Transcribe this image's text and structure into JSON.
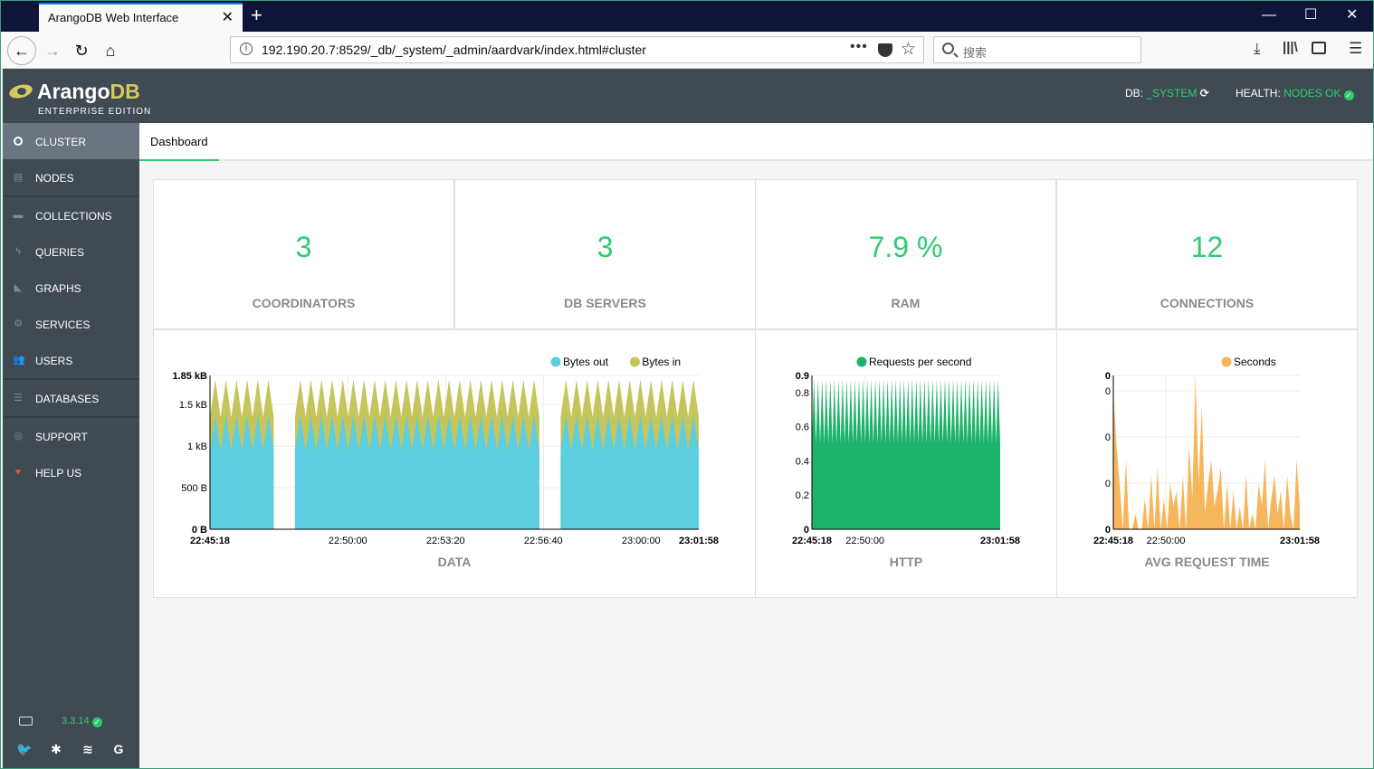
{
  "browser": {
    "tab_title": "ArangoDB Web Interface",
    "url": "192.190.20.7:8529/_db/_system/_admin/aardvark/index.html#cluster",
    "search_placeholder": "搜索"
  },
  "header": {
    "logo_main": "Arango",
    "logo_db": "DB",
    "logo_sub": "ENTERPRISE EDITION",
    "db_label": "DB:",
    "db_value": "_SYSTEM",
    "health_label": "HEALTH:",
    "health_value": "NODES OK"
  },
  "sidebar": {
    "items": [
      {
        "label": "CLUSTER",
        "icon": "circle-icon"
      },
      {
        "label": "NODES",
        "icon": "server-icon"
      },
      {
        "label": "COLLECTIONS",
        "icon": "folder-icon"
      },
      {
        "label": "QUERIES",
        "icon": "bolt-icon"
      },
      {
        "label": "GRAPHS",
        "icon": "area-chart-icon"
      },
      {
        "label": "SERVICES",
        "icon": "cogs-icon"
      },
      {
        "label": "USERS",
        "icon": "users-icon"
      },
      {
        "label": "DATABASES",
        "icon": "database-icon"
      },
      {
        "label": "SUPPORT",
        "icon": "lifebuoy-icon"
      },
      {
        "label": "HELP US",
        "icon": "heart-icon"
      }
    ],
    "version": "3.3.14"
  },
  "subbar": {
    "tab": "Dashboard"
  },
  "stats": [
    {
      "value": "3",
      "caption": "COORDINATORS"
    },
    {
      "value": "3",
      "caption": "DB SERVERS"
    },
    {
      "value": "7.9 %",
      "caption": "RAM"
    },
    {
      "value": "12",
      "caption": "CONNECTIONS"
    }
  ],
  "colors": {
    "bytes_out": "#5dcde0",
    "bytes_in": "#c5c55c",
    "requests": "#1db36a",
    "seconds": "#f6b65c",
    "accent": "#2ecc71"
  },
  "chart_data": [
    {
      "type": "area",
      "caption": "DATA",
      "series": [
        {
          "name": "Bytes out"
        },
        {
          "name": "Bytes in"
        }
      ],
      "y_ticks": [
        "0 B",
        "500 B",
        "1 kB",
        "1.5 kB",
        "1.85 kB"
      ],
      "y_tick_values": [
        0,
        500,
        1000,
        1500,
        1850
      ],
      "ylim": [
        0,
        1850
      ],
      "x_ticks": [
        "22:45:18",
        "22:50:00",
        "22:53:20",
        "22:56:40",
        "23:00:00",
        "23:01:58"
      ],
      "x_tick_seconds": [
        0,
        282,
        482,
        682,
        882,
        1000
      ],
      "x_range_seconds": [
        0,
        1000
      ],
      "gaps_seconds": [
        [
          141,
          172
        ],
        [
          682,
          710
        ]
      ],
      "out_peak": 1370,
      "out_trough": 950,
      "in_peak": 1800,
      "in_trough": 1350,
      "cycles": 46
    },
    {
      "type": "area",
      "caption": "HTTP",
      "series": [
        {
          "name": "Requests per second"
        }
      ],
      "y_ticks": [
        "0",
        "0.2",
        "0.4",
        "0.6",
        "0.8",
        "0.9"
      ],
      "y_tick_values": [
        0,
        0.2,
        0.4,
        0.6,
        0.8,
        0.9
      ],
      "ylim": [
        0,
        0.9
      ],
      "x_ticks": [
        "22:45:18",
        "22:50:00",
        "23:01:58"
      ],
      "x_tick_seconds": [
        0,
        282,
        1000
      ],
      "x_range_seconds": [
        0,
        1000
      ],
      "peak": 0.88,
      "trough": 0.5,
      "cycles": 46
    },
    {
      "type": "area",
      "caption": "AVG REQUEST TIME",
      "series": [
        {
          "name": "Seconds"
        }
      ],
      "y_ticks": [
        "0",
        "0",
        "0",
        "0",
        "0"
      ],
      "y_tick_values": [
        0,
        0.0006,
        0.0012,
        0.0018,
        0.002
      ],
      "ylim": [
        0,
        0.002
      ],
      "x_ticks": [
        "22:45:18",
        "22:50:00",
        "23:01:58"
      ],
      "x_tick_seconds": [
        0,
        282,
        1000
      ],
      "x_range_seconds": [
        0,
        1000
      ],
      "values": [
        0.0018,
        0.0011,
        0.0006,
        0,
        0.0009,
        0,
        0,
        0.0002,
        0,
        0,
        0.0004,
        0,
        0.0007,
        0,
        0.0008,
        0,
        0.0004,
        0,
        0.0006,
        0.0003,
        0.0005,
        0,
        0.0007,
        0,
        0.0011,
        0.0004,
        0.002,
        0.0006,
        0.0016,
        0.0002,
        0.0006,
        0.0009,
        0.0003,
        0.0005,
        0.0008,
        0,
        0.0006,
        0,
        0.0005,
        0,
        0.0003,
        0,
        0.0007,
        0,
        0.0002,
        0,
        0.0006,
        0.0003,
        0.0009,
        0,
        0.0004,
        0.0007,
        0.0002,
        0.0005,
        0,
        0.0007,
        0.0002,
        0,
        0.0009,
        0.0003
      ]
    }
  ]
}
